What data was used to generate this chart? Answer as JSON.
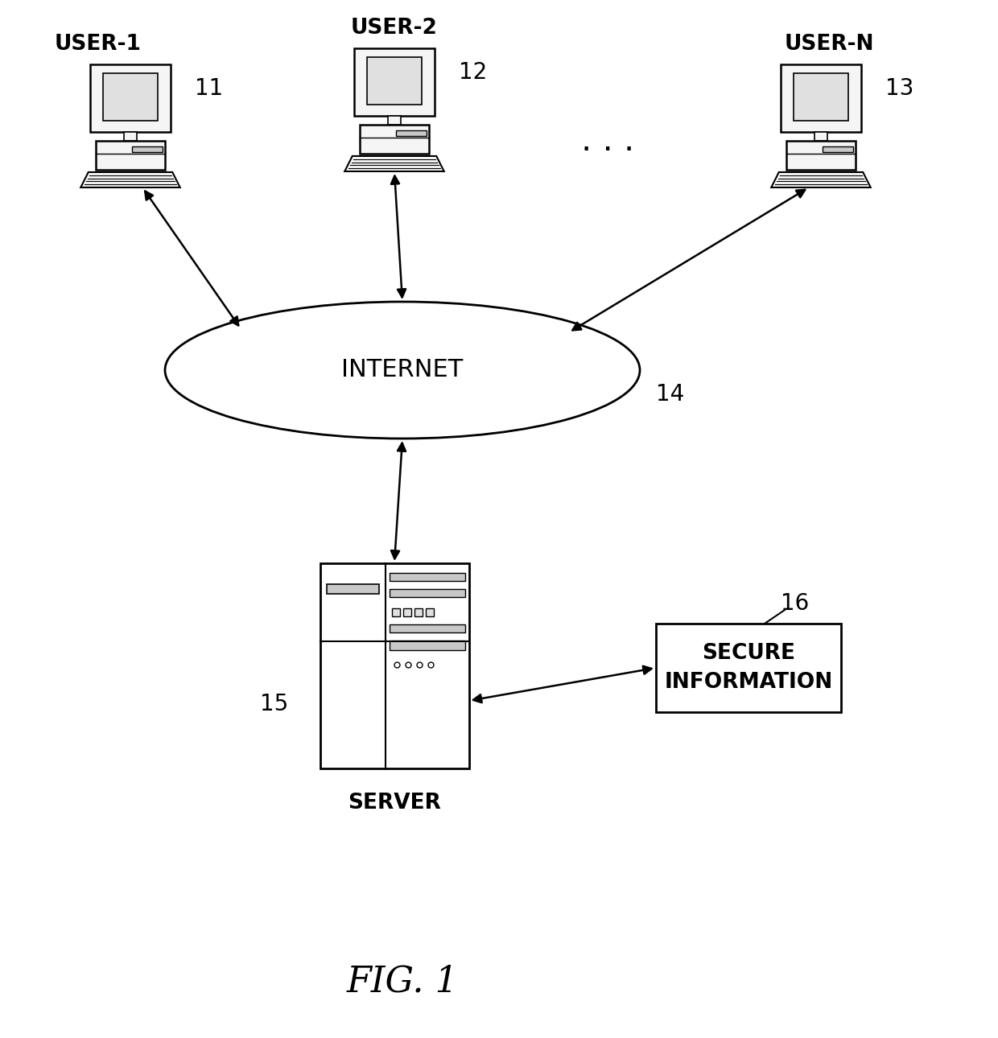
{
  "bg_color": "#ffffff",
  "fig_label": "FIG. 1",
  "internet_label": "INTERNET",
  "internet_label_14": "14",
  "server_label": "SERVER",
  "server_label_15": "15",
  "secure_label": "SECURE\nINFORMATION",
  "secure_label_16": "16",
  "user1_label": "USER-1",
  "user1_num": "11",
  "user2_label": "USER-2",
  "user2_num": "12",
  "usern_label": "USER-N",
  "usern_num": "13",
  "dots": ". . .",
  "line_color": "#000000",
  "fill_color": "#ffffff",
  "text_color": "#000000",
  "gray_light": "#f5f5f5",
  "gray_mid": "#e0e0e0",
  "gray_dark": "#c8c8c8"
}
